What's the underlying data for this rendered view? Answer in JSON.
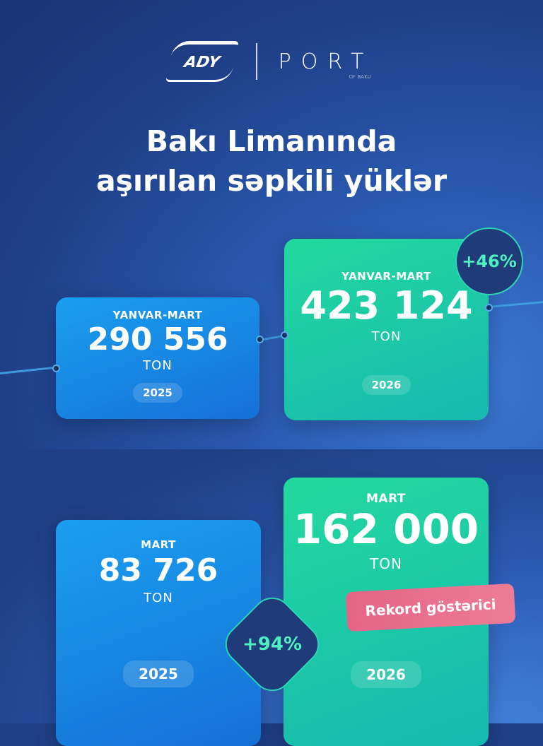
{
  "logos": {
    "ady": "ADY",
    "port": "PORT",
    "port_sub": "OF BAKU"
  },
  "title": {
    "line1": "Bakı Limanında",
    "line2": "aşırılan səpkili yüklər"
  },
  "period_cards": [
    {
      "label": "YANVAR-MART",
      "value": "290 556",
      "unit": "TON",
      "year": "2025"
    },
    {
      "label": "YANVAR-MART",
      "value": "423 124",
      "unit": "TON",
      "year": "2026"
    }
  ],
  "period_change": "+46%",
  "month_cards": [
    {
      "label": "MART",
      "value": "83 726",
      "unit": "TON",
      "year": "2025"
    },
    {
      "label": "MART",
      "value": "162 000",
      "unit": "TON",
      "year": "2026"
    }
  ],
  "month_change": "+94%",
  "record_badge": "Rekord göstərici",
  "colors": {
    "blue_card": "#1a9ff0",
    "green_card": "#23d99d",
    "badge_text": "#4ff0c0",
    "record": "#e46486"
  }
}
